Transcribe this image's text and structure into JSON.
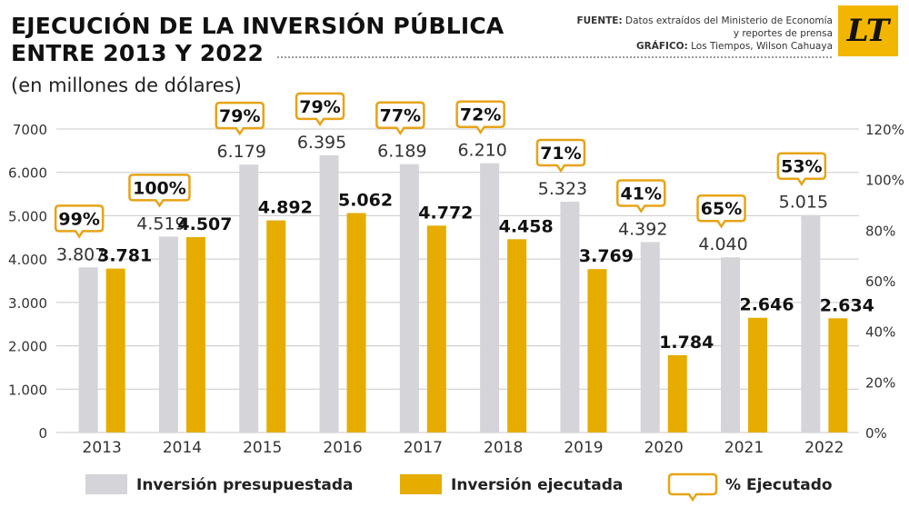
{
  "header": {
    "title_line1": "EJECUCIÓN DE LA INVERSIÓN PÚBLICA",
    "title_line2": "ENTRE 2013 Y 2022",
    "subtitle": "(en millones de dólares)",
    "source_label": "FUENTE:",
    "source_text_1": "Datos extraídos del Ministerio de Economía",
    "source_text_2": "y reportes de prensa",
    "graphic_label": "GRÁFICO:",
    "graphic_text": "Los Tiempos, Wilson Cahuaya",
    "logo_text": "LT"
  },
  "colors": {
    "budgeted": "#d4d4d9",
    "executed": "#e6ac00",
    "badge_border": "#e8a317",
    "grid": "#c8c8c8"
  },
  "chart_data": {
    "type": "bar",
    "categories": [
      "2013",
      "2014",
      "2015",
      "2016",
      "2017",
      "2018",
      "2019",
      "2020",
      "2021",
      "2022"
    ],
    "series": [
      {
        "name": "Inversión presupuestada",
        "values": [
          3807,
          4519,
          6179,
          6395,
          6189,
          6210,
          5323,
          4392,
          4040,
          5015
        ],
        "labels": [
          "3.807",
          "4.519",
          "6.179",
          "6.395",
          "6.189",
          "6.210",
          "5.323",
          "4.392",
          "4.040",
          "5.015"
        ]
      },
      {
        "name": "Inversión ejecutada",
        "values": [
          3781,
          4507,
          4892,
          5062,
          4772,
          4458,
          3769,
          1784,
          2646,
          2634
        ],
        "labels": [
          "3.781",
          "4.507",
          "4.892",
          "5.062",
          "4.772",
          "4.458",
          "3.769",
          "1.784",
          "2.646",
          "2.634"
        ]
      }
    ],
    "percent_executed": [
      "99%",
      "100%",
      "79%",
      "79%",
      "77%",
      "72%",
      "71%",
      "41%",
      "65%",
      "53%"
    ],
    "percent_name": "% Ejecutado",
    "ylim": [
      0,
      7000
    ],
    "y_ticks": [
      "0",
      "1.000",
      "2.000",
      "3.000",
      "4.000",
      "5.000",
      "6.000",
      "7000"
    ],
    "y2_ticks": [
      "0%",
      "20%",
      "40%",
      "60%",
      "80%",
      "100%",
      "120%"
    ],
    "grid": true,
    "legend_position": "bottom"
  }
}
